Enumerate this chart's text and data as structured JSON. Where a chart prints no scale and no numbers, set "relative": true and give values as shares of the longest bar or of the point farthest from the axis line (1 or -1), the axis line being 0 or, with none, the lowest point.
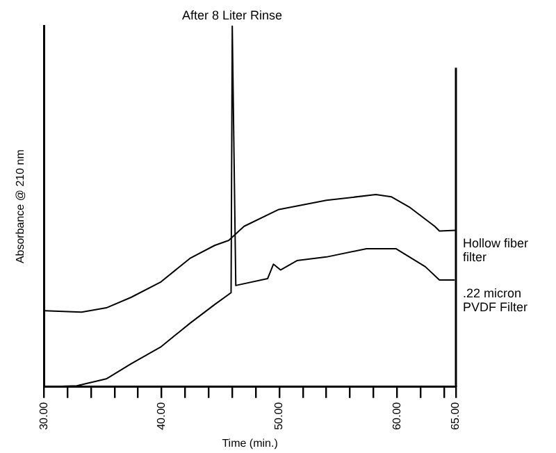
{
  "chart_data": {
    "type": "line",
    "title": "After 8 Liter Rinse",
    "xlabel": "Time (min.)",
    "ylabel": "Absorbance @ 210 nm",
    "relative": true,
    "xlim": [
      30,
      65
    ],
    "xticks": [
      {
        "value": 30,
        "label": "30.00"
      },
      {
        "value": 32,
        "label": null
      },
      {
        "value": 34,
        "label": null
      },
      {
        "value": 36,
        "label": null
      },
      {
        "value": 38,
        "label": null
      },
      {
        "value": 40,
        "label": "40.00"
      },
      {
        "value": 42,
        "label": null
      },
      {
        "value": 44,
        "label": null
      },
      {
        "value": 46,
        "label": null
      },
      {
        "value": 48,
        "label": null
      },
      {
        "value": 50,
        "label": "50.00"
      },
      {
        "value": 52,
        "label": null
      },
      {
        "value": 54,
        "label": null
      },
      {
        "value": 56,
        "label": null
      },
      {
        "value": 58,
        "label": null
      },
      {
        "value": 60,
        "label": "60.00"
      },
      {
        "value": 62,
        "label": null
      },
      {
        "value": 64,
        "label": null
      },
      {
        "value": 65,
        "label": "65.00"
      }
    ],
    "series": [
      {
        "name": "Hollow fiber filter",
        "color": "#000000",
        "x": [
          30.1,
          33.2,
          35.3,
          37.4,
          39.9,
          42.4,
          44.5,
          45.7,
          47,
          49.9,
          54,
          58.2,
          59.5,
          61.1,
          63.2,
          63.6,
          65
        ],
        "values": [
          0.211,
          0.207,
          0.219,
          0.248,
          0.29,
          0.356,
          0.392,
          0.406,
          0.445,
          0.491,
          0.517,
          0.533,
          0.527,
          0.497,
          0.445,
          0.432,
          0.434
        ]
      },
      {
        "name": ".22 micron PVDF Filter",
        "color": "#000000",
        "x": [
          30.1,
          32.8,
          35.3,
          37.4,
          39.9,
          42.4,
          44.5,
          45.9,
          46,
          46.3,
          49,
          49.5,
          50.1,
          51.5,
          54,
          57.4,
          59.9,
          62.4,
          63.6,
          64.9
        ],
        "values": [
          0,
          0.003,
          0.022,
          0.064,
          0.11,
          0.176,
          0.228,
          0.261,
          1,
          0.281,
          0.3,
          0.34,
          0.324,
          0.35,
          0.36,
          0.383,
          0.383,
          0.333,
          0.296,
          0.296
        ]
      }
    ],
    "legend": false,
    "grid": false,
    "marker": "none",
    "line_style": "solid"
  }
}
